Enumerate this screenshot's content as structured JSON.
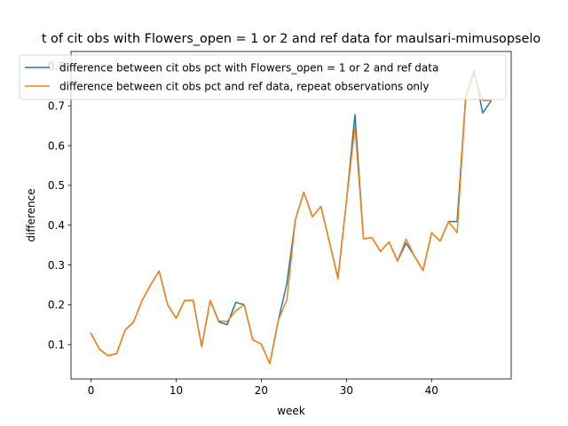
{
  "chart_data": {
    "type": "line",
    "title": "t of cit obs with Flowers_open = 1 or 2 and ref data for maulsari-mimusopselo",
    "xlabel": "week",
    "ylabel": "difference",
    "xlim": [
      -2.35,
      49.35
    ],
    "ylim": [
      0.0135,
      0.8365
    ],
    "xticks": [
      0,
      10,
      20,
      30,
      40
    ],
    "yticks": [
      0.1,
      0.2,
      0.3,
      0.4,
      0.5,
      0.6,
      0.7,
      0.8
    ],
    "grid": false,
    "legend_position": "top",
    "series": [
      {
        "name": "difference between cit obs pct with Flowers_open = 1 or 2 and ref data",
        "color": "#1f77b4",
        "x": [
          0,
          1,
          2,
          3,
          4,
          5,
          6,
          7,
          8,
          9,
          10,
          11,
          12,
          13,
          14,
          15,
          16,
          17,
          18,
          19,
          20,
          21,
          22,
          23,
          24,
          25,
          26,
          27,
          28,
          29,
          30,
          31,
          32,
          33,
          34,
          35,
          36,
          37,
          38,
          39,
          40,
          41,
          42,
          43,
          44,
          45,
          46,
          47
        ],
        "y": [
          0.128,
          0.088,
          0.072,
          0.077,
          0.136,
          0.157,
          0.211,
          0.25,
          0.285,
          0.2,
          0.166,
          0.211,
          0.211,
          0.095,
          0.211,
          0.157,
          0.15,
          0.206,
          0.2,
          0.112,
          0.101,
          0.052,
          0.161,
          0.253,
          0.414,
          0.483,
          0.421,
          0.447,
          0.358,
          0.267,
          0.46,
          0.678,
          0.366,
          0.369,
          0.334,
          0.358,
          0.31,
          0.355,
          0.322,
          0.286,
          0.381,
          0.36,
          0.409,
          0.409,
          0.72,
          0.79,
          0.682,
          0.713
        ]
      },
      {
        "name": "difference between cit obs pct and ref data, repeat observations only",
        "color": "#ff7f0e",
        "x": [
          0,
          1,
          2,
          3,
          4,
          5,
          6,
          7,
          8,
          9,
          10,
          11,
          12,
          13,
          14,
          15,
          16,
          17,
          18,
          19,
          20,
          21,
          22,
          23,
          24,
          25,
          26,
          27,
          28,
          29,
          30,
          31,
          32,
          33,
          34,
          35,
          36,
          37,
          38,
          39,
          40,
          41,
          42,
          43,
          44,
          45,
          46,
          47
        ],
        "y": [
          0.128,
          0.088,
          0.072,
          0.077,
          0.136,
          0.157,
          0.211,
          0.25,
          0.285,
          0.2,
          0.166,
          0.211,
          0.211,
          0.095,
          0.211,
          0.159,
          0.158,
          0.185,
          0.2,
          0.112,
          0.101,
          0.052,
          0.161,
          0.212,
          0.414,
          0.483,
          0.421,
          0.447,
          0.358,
          0.265,
          0.46,
          0.648,
          0.366,
          0.369,
          0.334,
          0.358,
          0.31,
          0.365,
          0.322,
          0.286,
          0.381,
          0.36,
          0.409,
          0.381,
          0.72,
          0.78,
          0.713,
          0.713
        ]
      }
    ]
  }
}
